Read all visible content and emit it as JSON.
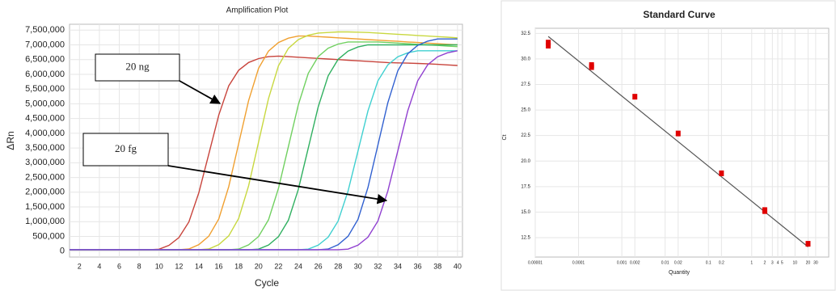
{
  "chart_data": [
    {
      "type": "line",
      "title": "Amplification Plot",
      "x_label": "Cycle",
      "y_label": "ΔRn",
      "x": [
        1,
        2,
        3,
        4,
        5,
        6,
        7,
        8,
        9,
        10,
        11,
        12,
        13,
        14,
        15,
        16,
        17,
        18,
        19,
        20,
        21,
        22,
        23,
        24,
        25,
        26,
        27,
        28,
        29,
        30,
        31,
        32,
        33,
        34,
        35,
        36,
        37,
        38,
        39,
        40
      ],
      "series": [
        {
          "color": "#c8443c",
          "values": [
            50000,
            50000,
            50000,
            50000,
            50000,
            50000,
            50000,
            50000,
            50000,
            66000,
            198000,
            462000,
            990000,
            1980000,
            3300000,
            4620000,
            5610000,
            6138000,
            6402000,
            6534000,
            6600000,
            6620000,
            6600000,
            6580000,
            6560000,
            6540000,
            6520000,
            6500000,
            6480000,
            6460000,
            6440000,
            6420000,
            6400000,
            6390000,
            6380000,
            6370000,
            6360000,
            6340000,
            6320000,
            6300000
          ]
        },
        {
          "color": "#f0a030",
          "values": [
            50000,
            50000,
            50000,
            50000,
            50000,
            50000,
            50000,
            50000,
            50000,
            50000,
            50000,
            50000,
            73000,
            219000,
            511000,
            1095000,
            2190000,
            3650000,
            5110000,
            6205000,
            6789000,
            7081000,
            7227000,
            7300000,
            7300000,
            7280000,
            7260000,
            7240000,
            7220000,
            7200000,
            7180000,
            7160000,
            7140000,
            7120000,
            7100000,
            7080000,
            7060000,
            7040000,
            7020000,
            7000000
          ]
        },
        {
          "color": "#c8d840",
          "values": [
            50000,
            50000,
            50000,
            50000,
            50000,
            50000,
            50000,
            50000,
            50000,
            50000,
            50000,
            50000,
            50000,
            50000,
            74000,
            222000,
            518000,
            1110000,
            2220000,
            3700000,
            5180000,
            6290000,
            6882000,
            7178000,
            7326000,
            7400000,
            7420000,
            7440000,
            7440000,
            7430000,
            7420000,
            7400000,
            7380000,
            7360000,
            7340000,
            7320000,
            7300000,
            7280000,
            7260000,
            7240000
          ]
        },
        {
          "color": "#70d060",
          "values": [
            50000,
            50000,
            50000,
            50000,
            50000,
            50000,
            50000,
            50000,
            50000,
            50000,
            50000,
            50000,
            50000,
            50000,
            50000,
            50000,
            50000,
            71000,
            213000,
            497000,
            1065000,
            2130000,
            3550000,
            4970000,
            6035000,
            6603000,
            6887000,
            7029000,
            7100000,
            7100000,
            7100000,
            7100000,
            7080000,
            7060000,
            7040000,
            7020000,
            7000000,
            6980000,
            6960000,
            6940000
          ]
        },
        {
          "color": "#30b060",
          "values": [
            50000,
            50000,
            50000,
            50000,
            50000,
            50000,
            50000,
            50000,
            50000,
            50000,
            50000,
            50000,
            50000,
            50000,
            50000,
            50000,
            50000,
            50000,
            50000,
            70000,
            210000,
            490000,
            1050000,
            2100000,
            3500000,
            4900000,
            5950000,
            6510000,
            6790000,
            6930000,
            7000000,
            7000000,
            7000000,
            7000000,
            7000000,
            7000000,
            7000000,
            7000000,
            7000000,
            7000000
          ]
        },
        {
          "color": "#40d0d0",
          "values": [
            50000,
            50000,
            50000,
            50000,
            50000,
            50000,
            50000,
            50000,
            50000,
            50000,
            50000,
            50000,
            50000,
            50000,
            50000,
            50000,
            50000,
            50000,
            50000,
            50000,
            50000,
            50000,
            50000,
            50000,
            68000,
            204000,
            476000,
            1020000,
            2040000,
            3400000,
            4760000,
            5780000,
            6324000,
            6596000,
            6732000,
            6800000,
            6800000,
            6800000,
            6800000,
            6800000
          ]
        },
        {
          "color": "#3060d0",
          "values": [
            50000,
            50000,
            50000,
            50000,
            50000,
            50000,
            50000,
            50000,
            50000,
            50000,
            50000,
            50000,
            50000,
            50000,
            50000,
            50000,
            50000,
            50000,
            50000,
            50000,
            50000,
            50000,
            50000,
            50000,
            50000,
            50000,
            72000,
            216000,
            504000,
            1080000,
            2160000,
            3600000,
            5040000,
            6120000,
            6696000,
            6984000,
            7128000,
            7200000,
            7200000,
            7200000
          ]
        },
        {
          "color": "#9040d0",
          "values": [
            50000,
            50000,
            50000,
            50000,
            50000,
            50000,
            50000,
            50000,
            50000,
            50000,
            50000,
            50000,
            50000,
            50000,
            50000,
            50000,
            50000,
            50000,
            50000,
            50000,
            50000,
            50000,
            50000,
            50000,
            50000,
            50000,
            50000,
            50000,
            68000,
            204000,
            476000,
            1020000,
            2040000,
            3400000,
            4760000,
            5780000,
            6324000,
            6596000,
            6732000,
            6800000
          ]
        }
      ],
      "xlim": [
        1,
        40.5
      ],
      "ylim": [
        -200000,
        7700000
      ],
      "xticks": [
        2,
        4,
        6,
        8,
        10,
        12,
        14,
        16,
        18,
        20,
        22,
        24,
        26,
        28,
        30,
        32,
        34,
        36,
        38,
        40
      ],
      "yticks": [
        0,
        {
          "value": 500000,
          "label": "500,000"
        },
        {
          "value": 1000000,
          "label": "1,000,000"
        },
        {
          "value": 1500000,
          "label": "1,500,000"
        },
        {
          "value": 2000000,
          "label": "2,000,000"
        },
        {
          "value": 2500000,
          "label": "2,500,000"
        },
        {
          "value": 3000000,
          "label": "3,000,000"
        },
        {
          "value": 3500000,
          "label": "3,500,000"
        },
        {
          "value": 4000000,
          "label": "4,000,000"
        },
        {
          "value": 4500000,
          "label": "4,500,000"
        },
        {
          "value": 5000000,
          "label": "5,000,000"
        },
        {
          "value": 5500000,
          "label": "5,500,000"
        },
        {
          "value": 6000000,
          "label": "6,000,000"
        },
        {
          "value": 6500000,
          "label": "6,500,000"
        },
        {
          "value": 7000000,
          "label": "7,000,000"
        },
        {
          "value": 7500000,
          "label": "7,500,000"
        }
      ],
      "grid": true,
      "annotations": [
        "20 ng",
        "20 fg"
      ]
    },
    {
      "type": "scatter",
      "title": "Standard Curve",
      "x_label": "Quantity",
      "y_label": "Ct",
      "x": [
        2e-05,
        2e-05,
        0.0002,
        0.0002,
        0.002,
        0.02,
        0.2,
        2,
        2,
        20
      ],
      "values": [
        31.3,
        31.6,
        29.2,
        29.4,
        26.3,
        22.7,
        18.8,
        15.1,
        15.2,
        11.9
      ],
      "color": "#e00000",
      "fit": {
        "x": [
          2e-05,
          20
        ],
        "values": [
          32.2,
          11.6
        ],
        "color": "#555555"
      },
      "log_x": true,
      "xlim": [
        1e-05,
        60
      ],
      "ylim": [
        10.6,
        33
      ],
      "xticks": [
        1e-05,
        0.0001,
        0.001,
        0.002,
        0.01,
        0.02,
        0.1,
        0.2,
        1,
        2,
        3,
        4,
        5,
        10,
        20,
        30
      ],
      "yticks": [
        12.5,
        {
          "value": 15,
          "label": "15.0"
        },
        17.5,
        {
          "value": 20,
          "label": "20.0"
        },
        22.5,
        {
          "value": 25,
          "label": "25.0"
        },
        27.5,
        {
          "value": 30,
          "label": "30.0"
        },
        32.5
      ],
      "grid": true
    }
  ]
}
